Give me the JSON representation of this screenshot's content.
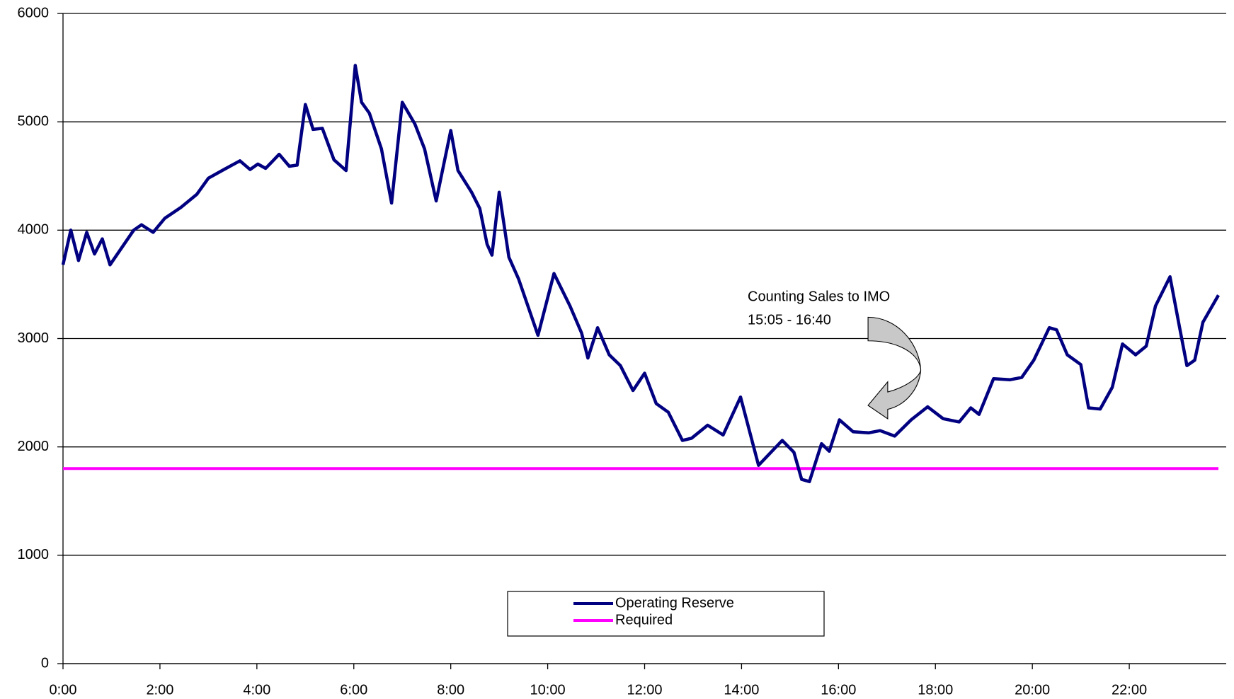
{
  "chart_data": {
    "type": "line",
    "annotation": [
      "Counting Sales to IMO",
      "15:05 - 16:40"
    ],
    "xlim": [
      0,
      24
    ],
    "xticks": [
      {
        "value": 0,
        "label": "0:00"
      },
      {
        "value": 2,
        "label": "2:00"
      },
      {
        "value": 4,
        "label": "4:00"
      },
      {
        "value": 6,
        "label": "6:00"
      },
      {
        "value": 8,
        "label": "8:00"
      },
      {
        "value": 10,
        "label": "10:00"
      },
      {
        "value": 12,
        "label": "12:00"
      },
      {
        "value": 14,
        "label": "14:00"
      },
      {
        "value": 16,
        "label": "16:00"
      },
      {
        "value": 18,
        "label": "18:00"
      },
      {
        "value": 20,
        "label": "20:00"
      },
      {
        "value": 22,
        "label": "22:00"
      }
    ],
    "ylim": [
      0,
      6000
    ],
    "yticks": [
      0,
      1000,
      2000,
      3000,
      4000,
      5000,
      6000
    ],
    "grid": true,
    "series": [
      {
        "name": "Operating Reserve",
        "color": "#000080",
        "x": [
          0,
          0.16,
          0.32,
          0.49,
          0.65,
          0.81,
          0.97,
          1.46,
          1.62,
          1.86,
          2.1,
          2.43,
          2.76,
          3.0,
          3.32,
          3.65,
          3.86,
          4.02,
          4.18,
          4.46,
          4.67,
          4.83,
          5.0,
          5.16,
          5.35,
          5.59,
          5.84,
          6.03,
          6.16,
          6.32,
          6.57,
          6.78,
          7.0,
          7.26,
          7.46,
          7.7,
          8.0,
          8.15,
          8.43,
          8.6,
          8.75,
          8.85,
          9.0,
          9.2,
          9.4,
          9.8,
          10.13,
          10.46,
          10.7,
          10.83,
          11.03,
          11.27,
          11.5,
          11.76,
          12.0,
          12.24,
          12.49,
          12.78,
          12.97,
          13.3,
          13.62,
          13.98,
          14.35,
          14.84,
          15.08,
          15.24,
          15.4,
          15.65,
          15.81,
          16.02,
          16.3,
          16.62,
          16.86,
          17.16,
          17.5,
          17.84,
          18.16,
          18.49,
          18.73,
          18.9,
          19.2,
          19.54,
          19.78,
          20.03,
          20.35,
          20.5,
          20.72,
          21.0,
          21.16,
          21.4,
          21.65,
          21.86,
          22.13,
          22.35,
          22.54,
          22.84,
          23.03,
          23.19,
          23.35,
          23.52,
          23.84
        ],
        "values": [
          3680,
          4000,
          3720,
          3980,
          3780,
          3920,
          3680,
          4000,
          4050,
          3980,
          4110,
          4210,
          4330,
          4480,
          4560,
          4640,
          4560,
          4610,
          4570,
          4700,
          4590,
          4600,
          5160,
          4930,
          4940,
          4650,
          4550,
          5520,
          5180,
          5080,
          4750,
          4250,
          5180,
          4980,
          4750,
          4270,
          4920,
          4550,
          4350,
          4200,
          3870,
          3770,
          4350,
          3750,
          3550,
          3030,
          3600,
          3300,
          3050,
          2820,
          3100,
          2850,
          2750,
          2520,
          2680,
          2400,
          2320,
          2060,
          2080,
          2200,
          2110,
          2460,
          1830,
          2060,
          1950,
          1700,
          1680,
          2030,
          1960,
          2250,
          2140,
          2130,
          2150,
          2100,
          2250,
          2370,
          2260,
          2230,
          2360,
          2300,
          2630,
          2620,
          2640,
          2800,
          3100,
          3080,
          2850,
          2760,
          2360,
          2350,
          2550,
          2950,
          2850,
          2930,
          3300,
          3570,
          3120,
          2750,
          2800,
          3150,
          3400
        ]
      },
      {
        "name": "Required",
        "color": "#ff00ff",
        "x": [
          0,
          23.84
        ],
        "values": [
          1800,
          1800
        ]
      }
    ]
  }
}
